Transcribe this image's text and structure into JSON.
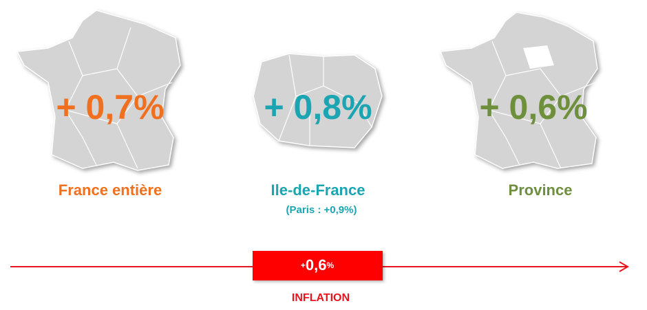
{
  "panels": [
    {
      "value": "+ 0,7%",
      "label": "France entière"
    },
    {
      "value": "+ 0,8%",
      "label": "Ile-de-France",
      "sublabel": "(Paris : +0,9%)"
    },
    {
      "value": "+ 0,6%",
      "label": "Province"
    }
  ],
  "inflation": {
    "prefix": "+",
    "value": "0,6",
    "suffix": "%",
    "label": "INFLATION"
  }
}
